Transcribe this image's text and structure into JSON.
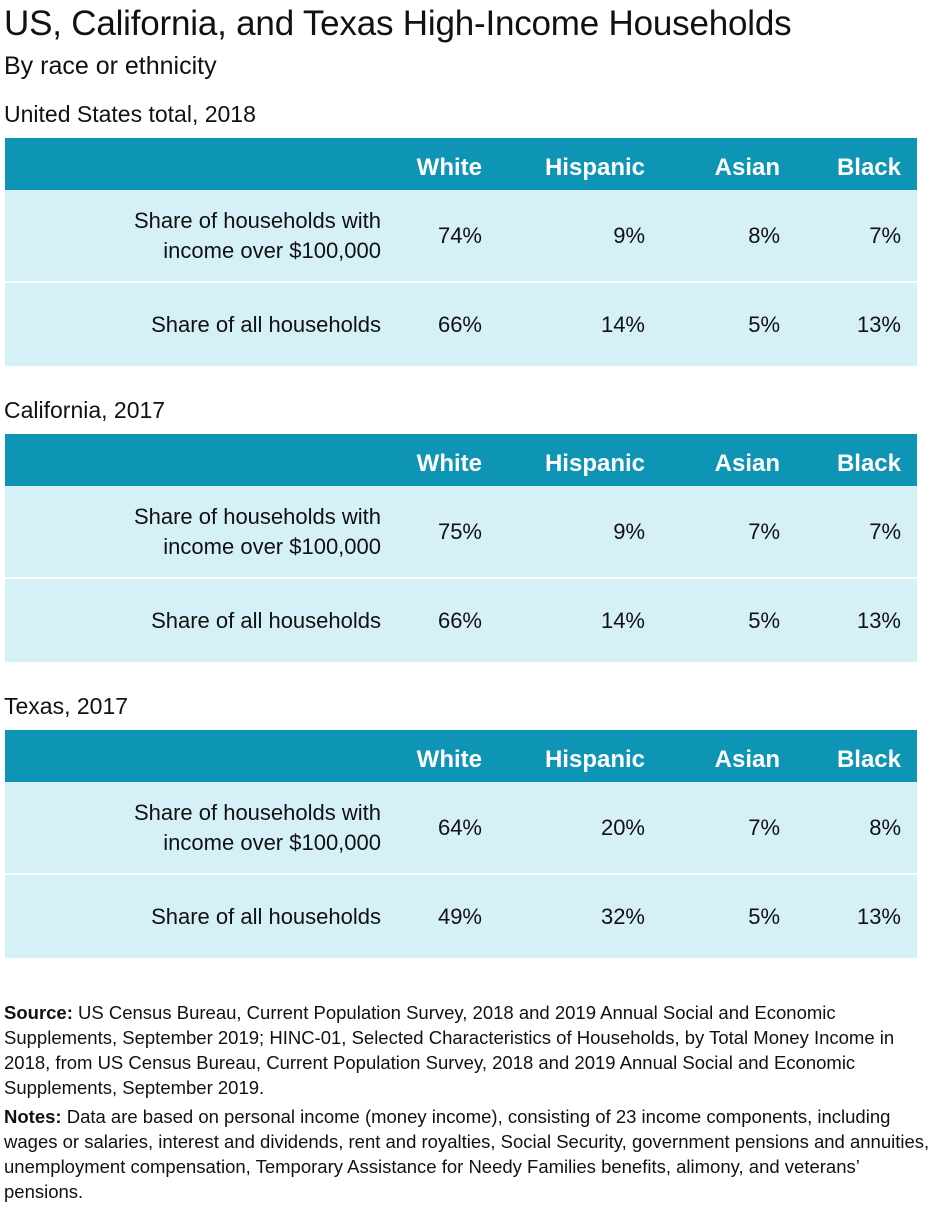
{
  "title": "US, California, and Texas High-Income Households",
  "subtitle": "By race or ethnicity",
  "chart_data": {
    "type": "table",
    "columns": [
      "White",
      "Hispanic",
      "Asian",
      "Black"
    ],
    "sections": [
      {
        "title": "United States total, 2018",
        "rows": [
          {
            "label_line1": "Share of households with",
            "label_line2": "income over $100,000",
            "values": [
              "74%",
              "9%",
              "8%",
              "7%"
            ]
          },
          {
            "label": "Share of all households",
            "values": [
              "66%",
              "14%",
              "5%",
              "13%"
            ]
          }
        ]
      },
      {
        "title": "California, 2017",
        "rows": [
          {
            "label_line1": "Share of households with",
            "label_line2": "income over $100,000",
            "values": [
              "75%",
              "9%",
              "7%",
              "7%"
            ]
          },
          {
            "label": "Share of all households",
            "values": [
              "66%",
              "14%",
              "5%",
              "13%"
            ]
          }
        ]
      },
      {
        "title": "Texas, 2017",
        "rows": [
          {
            "label_line1": "Share of households with",
            "label_line2": "income over $100,000",
            "values": [
              "64%",
              "20%",
              "7%",
              "8%"
            ]
          },
          {
            "label": "Share of all households",
            "values": [
              "49%",
              "32%",
              "5%",
              "13%"
            ]
          }
        ]
      }
    ]
  },
  "source_label": "Source:",
  "source_text": "US Census Bureau, Current Population Survey, 2018 and 2019 Annual Social and Economic Supplements, September 2019; HINC-01, Selected Characteristics of Households, by Total Money Income in 2018, from US Census Bureau, Current Population Survey, 2018 and 2019 Annual Social and Economic Supplements, September 2019.",
  "notes_label": "Notes:",
  "notes_text": "Data are based on personal income (money income), consisting of 23 income components, including wages or salaries, interest and dividends, rent and royalties, Social Security, government pensions and annuities, unemployment compensation, Temporary Assistance for Needy Families benefits, alimony, and veterans’ pensions.",
  "colors": {
    "header": "#0e94b5",
    "row": "#d6f0f7"
  }
}
